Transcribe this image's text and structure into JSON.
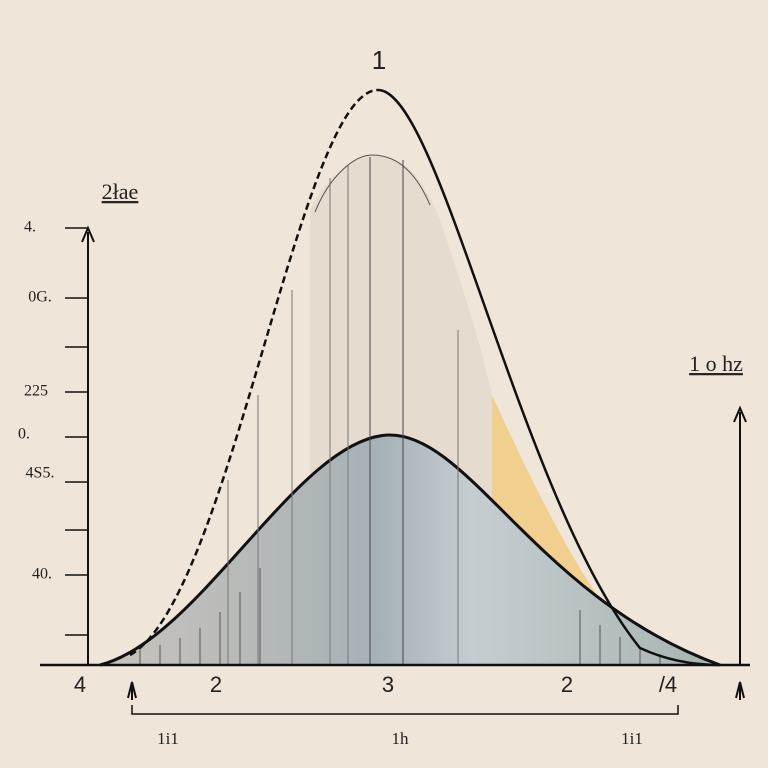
{
  "labels": {
    "title": "1",
    "left_title": "2łae",
    "right_title": "1 o hz"
  },
  "left_ticks": [
    "4.",
    "0G.",
    "225",
    "0.",
    "4S5.",
    "40."
  ],
  "bottom_ticks": [
    "4",
    "2",
    "3",
    "2",
    "/4"
  ],
  "bracket_labels": [
    "1i1",
    "1h",
    "1i1"
  ]
}
